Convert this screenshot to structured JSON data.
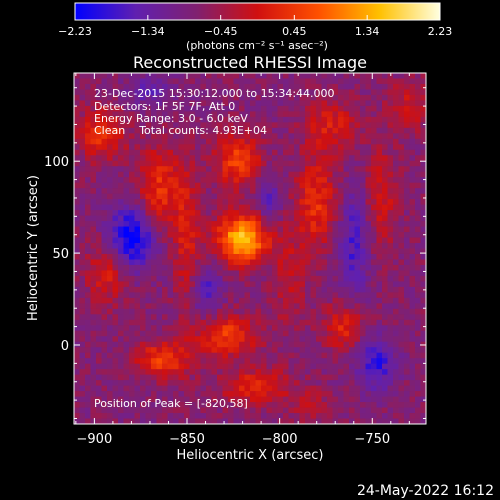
{
  "chart_data": {
    "type": "heatmap",
    "title": "Reconstructed RHESSI Image",
    "info_lines": [
      "23-Dec-2015 15:30:12.000 to 15:34:44.000",
      "Detectors: 1F 5F 7F, Att 0",
      "Energy Range: 3.0 - 6.0 keV",
      "Clean    Total counts: 4.93E+04"
    ],
    "peak_label": "Position of Peak = [-820,58]",
    "xlabel": "Heliocentric X (arcsec)",
    "ylabel": "Heliocentric Y (arcsec)",
    "xlim": [
      -911,
      -721
    ],
    "ylim": [
      -43,
      148
    ],
    "x_ticks": [
      -900,
      -850,
      -800,
      -750
    ],
    "x_tick_labels": [
      "−900",
      "−850",
      "−800",
      "−750"
    ],
    "y_ticks": [
      0,
      50,
      100
    ],
    "y_tick_labels": [
      "0",
      "50",
      "100"
    ],
    "colorbar": {
      "min": -2.23,
      "max": 2.23,
      "ticks": [
        -2.23,
        -1.34,
        -0.45,
        0.45,
        1.34,
        2.23
      ],
      "tick_labels": [
        "−2.23",
        "−1.34",
        "−0.45",
        "0.45",
        "1.34",
        "2.23"
      ],
      "label": "(photons cm⁻² s⁻¹ asec⁻²)",
      "colors": [
        "#0000ff",
        "#6020b0",
        "#802070",
        "#d01010",
        "#ff5000",
        "#ffc000",
        "#ffffe0"
      ]
    },
    "peak": {
      "x": -820,
      "y": 58,
      "value": 2.23
    },
    "sources": [
      {
        "x": -820,
        "y": 58,
        "amp": 2.3,
        "sx": 10,
        "sy": 9
      },
      {
        "x": -822,
        "y": 100,
        "amp": 1.3,
        "sx": 9,
        "sy": 10
      },
      {
        "x": -828,
        "y": 5,
        "amp": 1.2,
        "sx": 12,
        "sy": 8
      },
      {
        "x": -865,
        "y": 85,
        "amp": 1.1,
        "sx": 8,
        "sy": 16
      },
      {
        "x": -780,
        "y": 77,
        "amp": 1.05,
        "sx": 8,
        "sy": 18
      },
      {
        "x": -896,
        "y": 115,
        "amp": 1.1,
        "sx": 9,
        "sy": 10
      },
      {
        "x": -893,
        "y": 40,
        "amp": 0.9,
        "sx": 8,
        "sy": 12
      },
      {
        "x": -863,
        "y": -8,
        "amp": 1.2,
        "sx": 11,
        "sy": 7
      },
      {
        "x": -850,
        "y": 58,
        "amp": 0.8,
        "sx": 5,
        "sy": 28
      },
      {
        "x": -772,
        "y": 120,
        "amp": 0.8,
        "sx": 10,
        "sy": 10
      },
      {
        "x": -765,
        "y": 10,
        "amp": 1.0,
        "sx": 8,
        "sy": 9
      },
      {
        "x": -812,
        "y": -23,
        "amp": 1.0,
        "sx": 13,
        "sy": 7
      },
      {
        "x": -745,
        "y": 80,
        "amp": 0.75,
        "sx": 6,
        "sy": 20
      },
      {
        "x": -795,
        "y": 35,
        "amp": 0.6,
        "sx": 6,
        "sy": 18
      },
      {
        "x": -730,
        "y": 130,
        "amp": 0.7,
        "sx": 8,
        "sy": 10
      },
      {
        "x": -783,
        "y": -33,
        "amp": 0.6,
        "sx": 6,
        "sy": 6
      },
      {
        "x": -880,
        "y": 58,
        "amp": -1.6,
        "sx": 9,
        "sy": 12
      },
      {
        "x": -748,
        "y": -10,
        "amp": -1.1,
        "sx": 7,
        "sy": 10
      },
      {
        "x": -840,
        "y": 30,
        "amp": -0.8,
        "sx": 6,
        "sy": 10
      },
      {
        "x": -806,
        "y": 80,
        "amp": -0.7,
        "sx": 5,
        "sy": 12
      },
      {
        "x": -760,
        "y": 55,
        "amp": -0.9,
        "sx": 6,
        "sy": 22
      },
      {
        "x": -870,
        "y": 138,
        "amp": -0.6,
        "sx": 10,
        "sy": 6
      }
    ]
  },
  "footer": {
    "date": "24-May-2022 16:12"
  }
}
